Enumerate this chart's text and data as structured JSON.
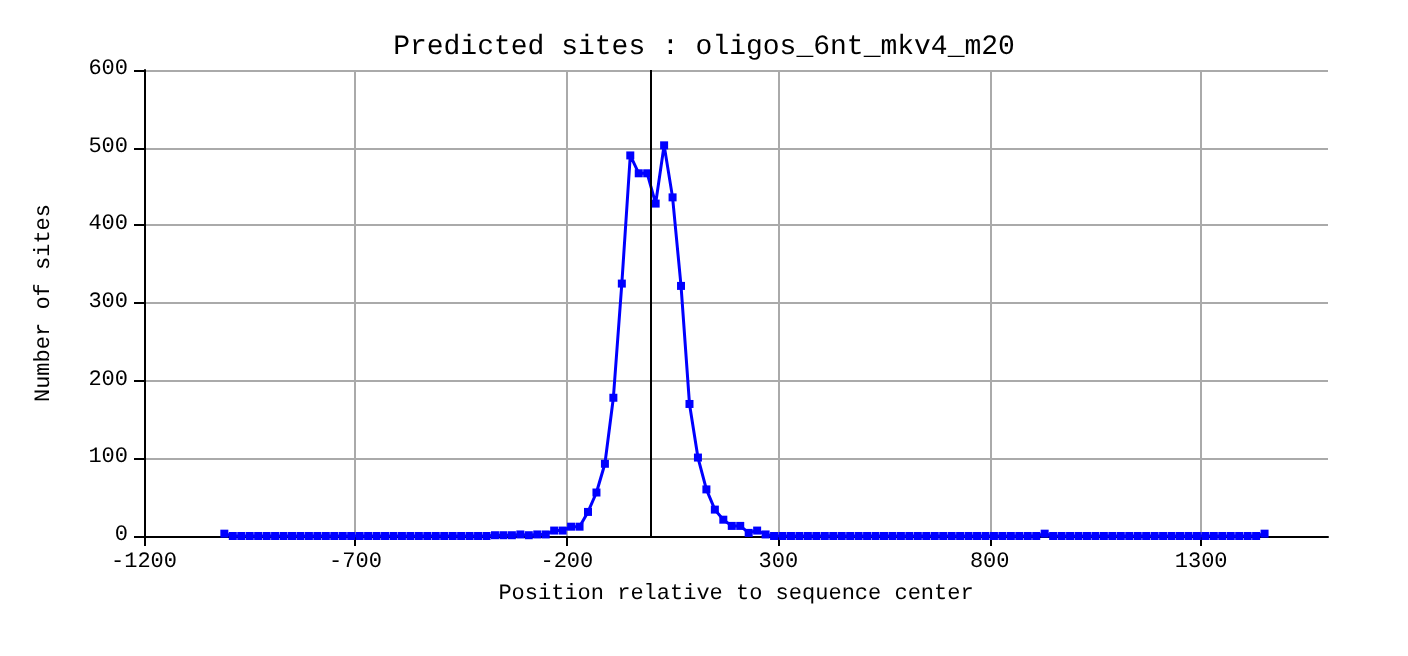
{
  "chart_data": {
    "type": "line",
    "title": "Predicted sites : oligos_6nt_mkv4_m20",
    "xlabel": "Position relative to sequence center",
    "ylabel": "Number of sites",
    "x": [
      -1010,
      -990,
      -970,
      -950,
      -930,
      -910,
      -890,
      -870,
      -850,
      -830,
      -810,
      -790,
      -770,
      -750,
      -730,
      -710,
      -690,
      -670,
      -650,
      -630,
      -610,
      -590,
      -570,
      -550,
      -530,
      -510,
      -490,
      -470,
      -450,
      -430,
      -410,
      -390,
      -370,
      -350,
      -330,
      -310,
      -290,
      -270,
      -250,
      -230,
      -210,
      -190,
      -170,
      -150,
      -130,
      -110,
      -90,
      -70,
      -50,
      -30,
      -10,
      10,
      30,
      50,
      70,
      90,
      110,
      130,
      150,
      170,
      190,
      210,
      230,
      250,
      270,
      290,
      310,
      330,
      350,
      370,
      390,
      410,
      430,
      450,
      470,
      490,
      510,
      530,
      550,
      570,
      590,
      610,
      630,
      650,
      670,
      690,
      710,
      730,
      750,
      770,
      790,
      810,
      830,
      850,
      870,
      890,
      910,
      930,
      950,
      970,
      990,
      1010,
      1030,
      1050,
      1070,
      1090,
      1110,
      1130,
      1150,
      1170,
      1190,
      1210,
      1230,
      1250,
      1270,
      1290,
      1310,
      1330,
      1350,
      1370,
      1390,
      1410,
      1430,
      1450
    ],
    "series": [
      {
        "color": "#0000ff",
        "values": [
          3,
          0,
          0,
          0,
          0,
          0,
          0,
          0,
          0,
          0,
          0,
          0,
          0,
          0,
          0,
          0,
          0,
          0,
          0,
          0,
          0,
          0,
          0,
          0,
          0,
          0,
          0,
          0,
          0,
          0,
          0,
          0,
          1,
          1,
          1,
          2,
          1,
          2,
          2,
          7,
          7,
          12,
          12,
          31,
          56,
          93,
          178,
          325,
          490,
          467,
          467,
          428,
          503,
          436,
          322,
          170,
          101,
          60,
          34,
          21,
          13,
          13,
          4,
          7,
          2,
          0,
          0,
          0,
          0,
          0,
          0,
          0,
          0,
          0,
          0,
          0,
          0,
          0,
          0,
          0,
          0,
          0,
          0,
          0,
          0,
          0,
          0,
          0,
          0,
          0,
          0,
          0,
          0,
          0,
          0,
          0,
          0,
          3,
          0,
          0,
          0,
          0,
          0,
          0,
          0,
          0,
          0,
          0,
          0,
          0,
          0,
          0,
          0,
          0,
          0,
          0,
          0,
          0,
          0,
          0,
          0,
          0,
          0,
          3
        ]
      }
    ],
    "xlim": [
      -1200,
      1600
    ],
    "xticks": [
      -1200,
      -700,
      -200,
      300,
      800,
      1300
    ],
    "ylim": [
      0,
      600
    ],
    "yticks": [
      0,
      100,
      200,
      300,
      400,
      500,
      600
    ],
    "ref_lines": [
      {
        "axis": "x",
        "value": 0,
        "color": "#000000"
      }
    ],
    "grid": true,
    "marker": "square",
    "line_style": "solid"
  }
}
